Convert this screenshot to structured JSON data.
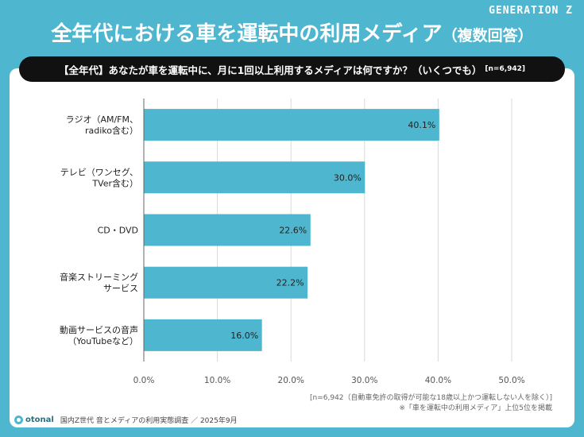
{
  "brand": "GENERATION Z",
  "title": "全年代における車を運転中の利用メディア",
  "title_suffix": "（複数回答）",
  "question": "【全年代】あなたが車を運転中に、月に1回以上利用するメディアは何ですか？（いくつでも）",
  "question_n": "[n=6,942]",
  "note1": "[n=6,942（自動車免許の取得が可能な18歳以上かつ運転しない人を除く）]",
  "note2": "※「車を運転中の利用メディア」上位5位を掲載",
  "footer": {
    "logo": "otonal",
    "text": "国内Z世代 音とメディアの利用実態調査 ／ 2025年9月"
  },
  "colors": {
    "bar": "#4eb7cf",
    "background": "#4eb7cf",
    "question_bg": "#111111"
  },
  "chart_data": {
    "type": "bar",
    "orientation": "horizontal",
    "categories": [
      [
        "ラジオ（AM/FM、",
        "radiko含む）"
      ],
      [
        "テレビ（ワンセグ、",
        "TVer含む）"
      ],
      [
        "CD・DVD"
      ],
      [
        "音楽ストリーミング",
        "サービス"
      ],
      [
        "動画サービスの音声",
        "（YouTubeなど）"
      ]
    ],
    "values": [
      40.1,
      30.0,
      22.6,
      22.2,
      16.0
    ],
    "value_labels": [
      "40.1%",
      "30.0%",
      "22.6%",
      "22.2%",
      "16.0%"
    ],
    "xlim": [
      0,
      50
    ],
    "ticks": [
      "0.0%",
      "10.0%",
      "20.0%",
      "30.0%",
      "40.0%",
      "50.0%"
    ],
    "grid": true
  }
}
